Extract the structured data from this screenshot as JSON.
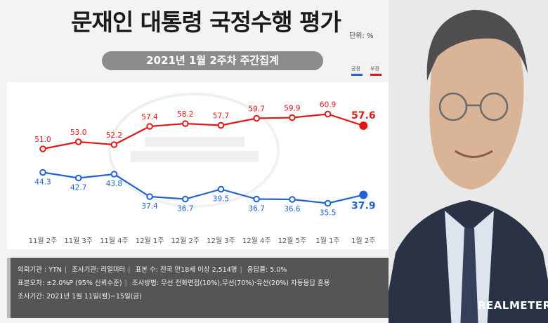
{
  "title": "문재인 대통령 국정수행 평가",
  "unit": "단위: %",
  "subtitle": "2021년 1월 2주차 주간집계",
  "brand": "REALMETER",
  "legend": {
    "positive": "긍정",
    "negative": "부정"
  },
  "colors": {
    "positive": "#1f63d4",
    "negative": "#e01818"
  },
  "chart_data": {
    "type": "line",
    "categories": [
      "11월 2주",
      "11월 3주",
      "11월 4주",
      "12월 1주",
      "12월 2주",
      "12월 3주",
      "12월 4주",
      "12월 5주",
      "1월 1주",
      "1월 2주"
    ],
    "series": [
      {
        "name": "부정",
        "color": "#e01818",
        "values": [
          51.0,
          53.0,
          52.2,
          57.4,
          58.2,
          57.7,
          59.7,
          59.9,
          60.9,
          57.6
        ]
      },
      {
        "name": "긍정",
        "color": "#1f63d4",
        "values": [
          44.3,
          42.7,
          43.8,
          37.4,
          36.7,
          39.5,
          36.7,
          36.6,
          35.5,
          37.9
        ]
      }
    ],
    "ylim": [
      30,
      65
    ],
    "grid": false,
    "legend_position": "top-right"
  },
  "footer": {
    "row1": [
      "의뢰기관 : YTN",
      "조사기관: 리얼미터",
      "표본 수: 전국 만18세 이상 2,514명",
      "응답률: 5.0%"
    ],
    "row2": [
      "표본오차: ±2.0%P (95% 신뢰수준)",
      "조사방법: 무선 전화면접(10%),무선(70%)·유선(20%) 자동응답 혼용"
    ],
    "row3": [
      "조사기간: 2021년 1월 11일(월)~15일(금)"
    ]
  }
}
